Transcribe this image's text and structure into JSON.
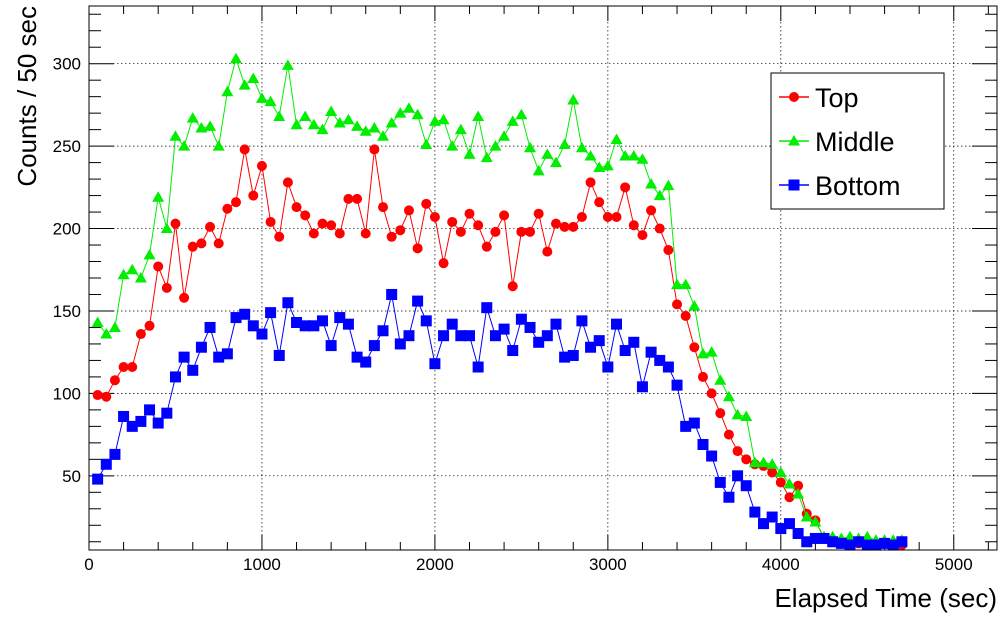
{
  "chart_data": {
    "type": "scatter",
    "title": "",
    "xlabel": "Elapsed Time (sec)",
    "ylabel": "Counts / 50 sec",
    "xlim": [
      0,
      5250
    ],
    "ylim": [
      5,
      335
    ],
    "xticks": [
      0,
      1000,
      2000,
      3000,
      4000,
      5000
    ],
    "yticks": [
      50,
      100,
      150,
      200,
      250,
      300
    ],
    "grid": true,
    "legend_position": "top-right",
    "x": [
      50,
      100,
      150,
      200,
      250,
      300,
      350,
      400,
      450,
      500,
      550,
      600,
      650,
      700,
      750,
      800,
      850,
      900,
      950,
      1000,
      1050,
      1100,
      1150,
      1200,
      1250,
      1300,
      1350,
      1400,
      1450,
      1500,
      1550,
      1600,
      1650,
      1700,
      1750,
      1800,
      1850,
      1900,
      1950,
      2000,
      2050,
      2100,
      2150,
      2200,
      2250,
      2300,
      2350,
      2400,
      2450,
      2500,
      2550,
      2600,
      2650,
      2700,
      2750,
      2800,
      2850,
      2900,
      2950,
      3000,
      3050,
      3100,
      3150,
      3200,
      3250,
      3300,
      3350,
      3400,
      3450,
      3500,
      3550,
      3600,
      3650,
      3700,
      3750,
      3800,
      3850,
      3900,
      3950,
      4000,
      4050,
      4100,
      4150,
      4200,
      4250,
      4300,
      4350,
      4400,
      4450,
      4500,
      4550,
      4600,
      4650,
      4700
    ],
    "series": [
      {
        "name": "Top",
        "color": "#ff0000",
        "marker": "circle",
        "values": [
          99,
          98,
          108,
          116,
          116,
          136,
          141,
          177,
          164,
          203,
          158,
          189,
          191,
          201,
          191,
          212,
          216,
          248,
          220,
          238,
          204,
          195,
          228,
          213,
          208,
          197,
          203,
          202,
          197,
          218,
          218,
          197,
          248,
          213,
          195,
          199,
          211,
          188,
          215,
          207,
          179,
          204,
          198,
          209,
          202,
          189,
          198,
          208,
          165,
          198,
          198,
          209,
          186,
          203,
          201,
          201,
          207,
          228,
          216,
          207,
          207,
          225,
          202,
          196,
          211,
          200,
          187,
          154,
          147,
          128,
          110,
          100,
          88,
          75,
          65,
          60,
          57,
          56,
          52,
          46,
          37,
          44,
          27,
          23,
          12,
          11,
          9,
          9,
          9,
          8,
          8,
          9,
          9,
          8
        ]
      },
      {
        "name": "Middle",
        "color": "#00ee00",
        "marker": "triangle",
        "values": [
          143,
          136,
          140,
          172,
          175,
          170,
          184,
          219,
          200,
          256,
          250,
          267,
          261,
          262,
          250,
          283,
          303,
          287,
          291,
          279,
          277,
          268,
          299,
          263,
          268,
          263,
          260,
          271,
          264,
          266,
          262,
          259,
          261,
          256,
          264,
          270,
          273,
          269,
          251,
          265,
          266,
          250,
          260,
          245,
          268,
          243,
          250,
          256,
          265,
          269,
          249,
          235,
          245,
          240,
          251,
          278,
          249,
          244,
          237,
          238,
          254,
          244,
          244,
          242,
          227,
          220,
          226,
          166,
          166,
          153,
          124,
          125,
          108,
          98,
          87,
          86,
          58,
          58,
          57,
          52,
          45,
          39,
          25,
          22,
          13,
          13,
          12,
          13,
          12,
          13,
          11,
          11,
          11,
          11
        ]
      },
      {
        "name": "Bottom",
        "color": "#0000ff",
        "marker": "square",
        "values": [
          48,
          57,
          63,
          86,
          80,
          83,
          90,
          82,
          88,
          110,
          122,
          114,
          128,
          140,
          122,
          124,
          146,
          148,
          141,
          136,
          149,
          123,
          155,
          143,
          141,
          141,
          144,
          129,
          146,
          142,
          122,
          119,
          129,
          138,
          160,
          130,
          135,
          156,
          144,
          118,
          135,
          142,
          135,
          135,
          116,
          152,
          135,
          139,
          126,
          145,
          140,
          131,
          135,
          142,
          122,
          123,
          144,
          128,
          132,
          116,
          142,
          126,
          131,
          104,
          125,
          120,
          116,
          105,
          80,
          82,
          69,
          62,
          46,
          37,
          50,
          44,
          28,
          21,
          25,
          18,
          21,
          15,
          10,
          12,
          12,
          10,
          9,
          8,
          10,
          8,
          8,
          9,
          8,
          10
        ]
      }
    ],
    "legend": [
      "Top",
      "Middle",
      "Bottom"
    ]
  }
}
